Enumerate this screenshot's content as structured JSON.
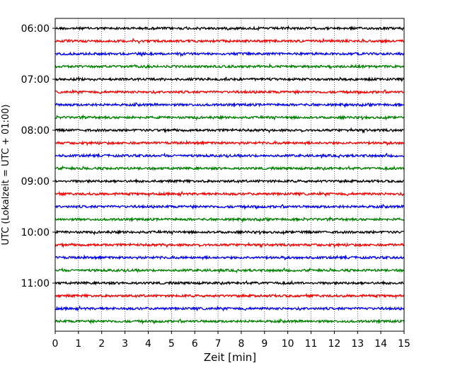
{
  "chart_data": {
    "type": "line",
    "title": "",
    "xlabel": "Zeit  [min]",
    "ylabel": "UTC (Lokalzeit = UTC + 01:00)",
    "xlim": [
      0,
      15
    ],
    "x_ticks": [
      0,
      1,
      2,
      3,
      4,
      5,
      6,
      7,
      8,
      9,
      10,
      11,
      12,
      13,
      14,
      15
    ],
    "y_tick_labels": [
      "06:00",
      "07:00",
      "08:00",
      "09:00",
      "10:00",
      "11:00"
    ],
    "trace_minutes": 15,
    "grid": "vertical dotted at each minute",
    "legend": "none",
    "trace_colors": [
      "#000000",
      "#ff0000",
      "#0000ff",
      "#008000"
    ],
    "rows": [
      {
        "time": "06:00"
      },
      {
        "time": "06:15"
      },
      {
        "time": "06:30"
      },
      {
        "time": "06:45"
      },
      {
        "time": "07:00"
      },
      {
        "time": "07:15"
      },
      {
        "time": "07:30"
      },
      {
        "time": "07:45"
      },
      {
        "time": "08:00"
      },
      {
        "time": "08:15"
      },
      {
        "time": "08:30"
      },
      {
        "time": "08:45"
      },
      {
        "time": "09:00"
      },
      {
        "time": "09:15"
      },
      {
        "time": "09:30"
      },
      {
        "time": "09:45"
      },
      {
        "time": "10:00"
      },
      {
        "time": "10:15"
      },
      {
        "time": "10:30"
      },
      {
        "time": "10:45"
      },
      {
        "time": "11:00"
      },
      {
        "time": "11:15"
      },
      {
        "time": "11:30"
      },
      {
        "time": "11:45"
      }
    ]
  }
}
